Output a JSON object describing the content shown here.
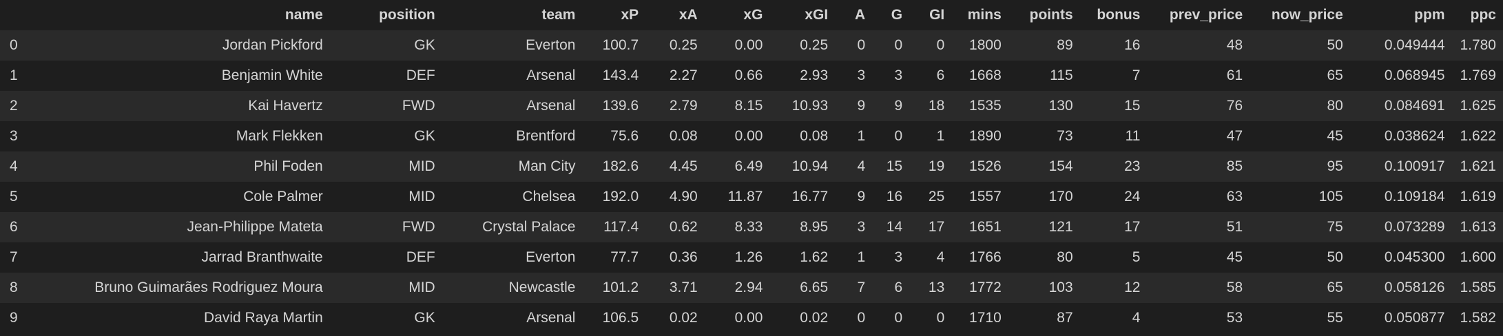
{
  "columns": [
    "name",
    "position",
    "team",
    "xP",
    "xA",
    "xG",
    "xGI",
    "A",
    "G",
    "GI",
    "mins",
    "points",
    "bonus",
    "prev_price",
    "now_price",
    "ppm",
    "ppc"
  ],
  "rows": [
    {
      "index": "0",
      "cells": [
        "Jordan Pickford",
        "GK",
        "Everton",
        "100.7",
        "0.25",
        "0.00",
        "0.25",
        "0",
        "0",
        "0",
        "1800",
        "89",
        "16",
        "48",
        "50",
        "0.049444",
        "1.780"
      ]
    },
    {
      "index": "1",
      "cells": [
        "Benjamin White",
        "DEF",
        "Arsenal",
        "143.4",
        "2.27",
        "0.66",
        "2.93",
        "3",
        "3",
        "6",
        "1668",
        "115",
        "7",
        "61",
        "65",
        "0.068945",
        "1.769"
      ]
    },
    {
      "index": "2",
      "cells": [
        "Kai Havertz",
        "FWD",
        "Arsenal",
        "139.6",
        "2.79",
        "8.15",
        "10.93",
        "9",
        "9",
        "18",
        "1535",
        "130",
        "15",
        "76",
        "80",
        "0.084691",
        "1.625"
      ]
    },
    {
      "index": "3",
      "cells": [
        "Mark Flekken",
        "GK",
        "Brentford",
        "75.6",
        "0.08",
        "0.00",
        "0.08",
        "1",
        "0",
        "1",
        "1890",
        "73",
        "11",
        "47",
        "45",
        "0.038624",
        "1.622"
      ]
    },
    {
      "index": "4",
      "cells": [
        "Phil Foden",
        "MID",
        "Man City",
        "182.6",
        "4.45",
        "6.49",
        "10.94",
        "4",
        "15",
        "19",
        "1526",
        "154",
        "23",
        "85",
        "95",
        "0.100917",
        "1.621"
      ]
    },
    {
      "index": "5",
      "cells": [
        "Cole Palmer",
        "MID",
        "Chelsea",
        "192.0",
        "4.90",
        "11.87",
        "16.77",
        "9",
        "16",
        "25",
        "1557",
        "170",
        "24",
        "63",
        "105",
        "0.109184",
        "1.619"
      ]
    },
    {
      "index": "6",
      "cells": [
        "Jean-Philippe Mateta",
        "FWD",
        "Crystal Palace",
        "117.4",
        "0.62",
        "8.33",
        "8.95",
        "3",
        "14",
        "17",
        "1651",
        "121",
        "17",
        "51",
        "75",
        "0.073289",
        "1.613"
      ]
    },
    {
      "index": "7",
      "cells": [
        "Jarrad Branthwaite",
        "DEF",
        "Everton",
        "77.7",
        "0.36",
        "1.26",
        "1.62",
        "1",
        "3",
        "4",
        "1766",
        "80",
        "5",
        "45",
        "50",
        "0.045300",
        "1.600"
      ]
    },
    {
      "index": "8",
      "cells": [
        "Bruno Guimarães Rodriguez Moura",
        "MID",
        "Newcastle",
        "101.2",
        "3.71",
        "2.94",
        "6.65",
        "7",
        "6",
        "13",
        "1772",
        "103",
        "12",
        "58",
        "65",
        "0.058126",
        "1.585"
      ]
    },
    {
      "index": "9",
      "cells": [
        "David Raya Martin",
        "GK",
        "Arsenal",
        "106.5",
        "0.02",
        "0.00",
        "0.02",
        "0",
        "0",
        "0",
        "1710",
        "87",
        "4",
        "53",
        "55",
        "0.050877",
        "1.582"
      ]
    }
  ],
  "colors": {
    "background": "#1e1e1e",
    "row_stripe": "#2a2a2a",
    "text": "#d4d4d4"
  }
}
